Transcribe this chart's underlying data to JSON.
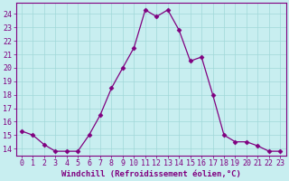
{
  "x": [
    0,
    1,
    2,
    3,
    4,
    5,
    6,
    7,
    8,
    9,
    10,
    11,
    12,
    13,
    14,
    15,
    16,
    17,
    18,
    19,
    20,
    21,
    22,
    23
  ],
  "y": [
    15.3,
    15.0,
    14.3,
    13.8,
    13.8,
    13.8,
    15.0,
    16.5,
    18.5,
    20.0,
    21.5,
    24.3,
    23.8,
    24.3,
    22.8,
    20.5,
    20.8,
    18.0,
    15.0,
    14.5,
    14.5,
    14.2,
    13.8,
    13.8
  ],
  "line_color": "#800080",
  "marker": "D",
  "marker_size": 2.5,
  "line_width": 0.9,
  "bg_color": "#c8eef0",
  "grid_color": "#a0d8d8",
  "xlabel": "Windchill (Refroidissement éolien,°C)",
  "xlabel_fontsize": 6.5,
  "xlabel_color": "#800080",
  "ylabel_ticks": [
    14,
    15,
    16,
    17,
    18,
    19,
    20,
    21,
    22,
    23,
    24
  ],
  "ylim": [
    13.5,
    24.8
  ],
  "xlim": [
    -0.5,
    23.5
  ],
  "tick_color": "#800080",
  "tick_fontsize": 6.0,
  "spine_color": "#800080"
}
